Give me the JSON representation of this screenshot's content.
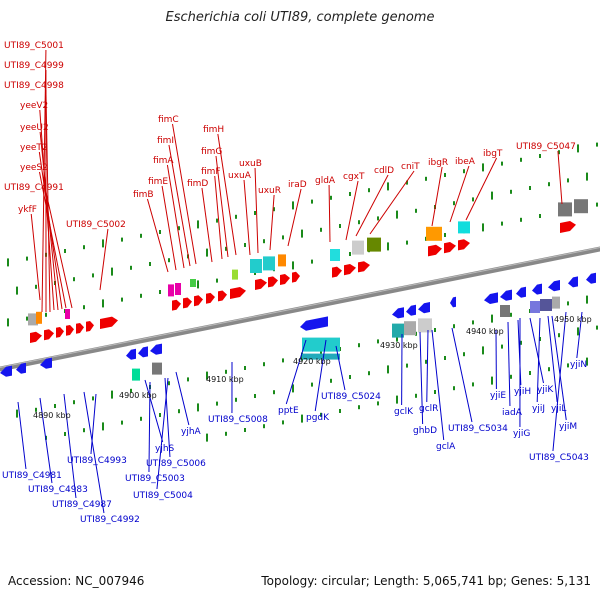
{
  "title": "Escherichia coli UTI89, complete genome",
  "footer": {
    "accession": "Accession: NC_007946",
    "summary": "Topology: circular; Length: 5,065,741 bp; Genes: 5,131"
  },
  "colors": {
    "forward_label": "#cc0000",
    "reverse_label": "#0000cc",
    "forward_feature": "#ee0000",
    "reverse_feature": "#1515ee",
    "backbone": "#888888",
    "tick": "#1a8a1a"
  },
  "scale_labels": [
    "4890 kbp",
    "4900 kbp",
    "4910 kbp",
    "4920 kbp",
    "4930 kbp",
    "4940 kbp",
    "4950 kbp"
  ],
  "forward_genes": [
    "UTI89_C5001",
    "UTI89_C4999",
    "UTI89_C4998",
    "yeeV2",
    "yeeU2",
    "yeeT2",
    "yeeS2",
    "UTI89_C4991",
    "ykfF",
    "UTI89_C5002",
    "fimB",
    "fimE",
    "fimA",
    "fimI",
    "fimC",
    "fimD",
    "fimF",
    "fimG",
    "fimH",
    "uxuA",
    "uxuB",
    "uxuR",
    "iraD",
    "gldA",
    "cgxT",
    "cdlD",
    "cniT",
    "ibgR",
    "ibeA",
    "ibgT",
    "UTI89_C5047"
  ],
  "reverse_genes": [
    "UTI89_C4981",
    "UTI89_C4983",
    "UTI89_C4987",
    "UTI89_C4992",
    "UTI89_C4993",
    "yjhS",
    "UTI89_C5006",
    "UTI89_C5003",
    "UTI89_C5004",
    "yjhA",
    "UTI89_C5008",
    "pptE",
    "pgdK",
    "UTI89_C5024",
    "gclK",
    "ghbD",
    "gclR",
    "gclA",
    "UTI89_C5034",
    "yjiE",
    "iadA",
    "yjiH",
    "yjiG",
    "yjiK",
    "yjiJ",
    "yjiL",
    "yjiM",
    "UTI89_C5043",
    "yjiN"
  ]
}
